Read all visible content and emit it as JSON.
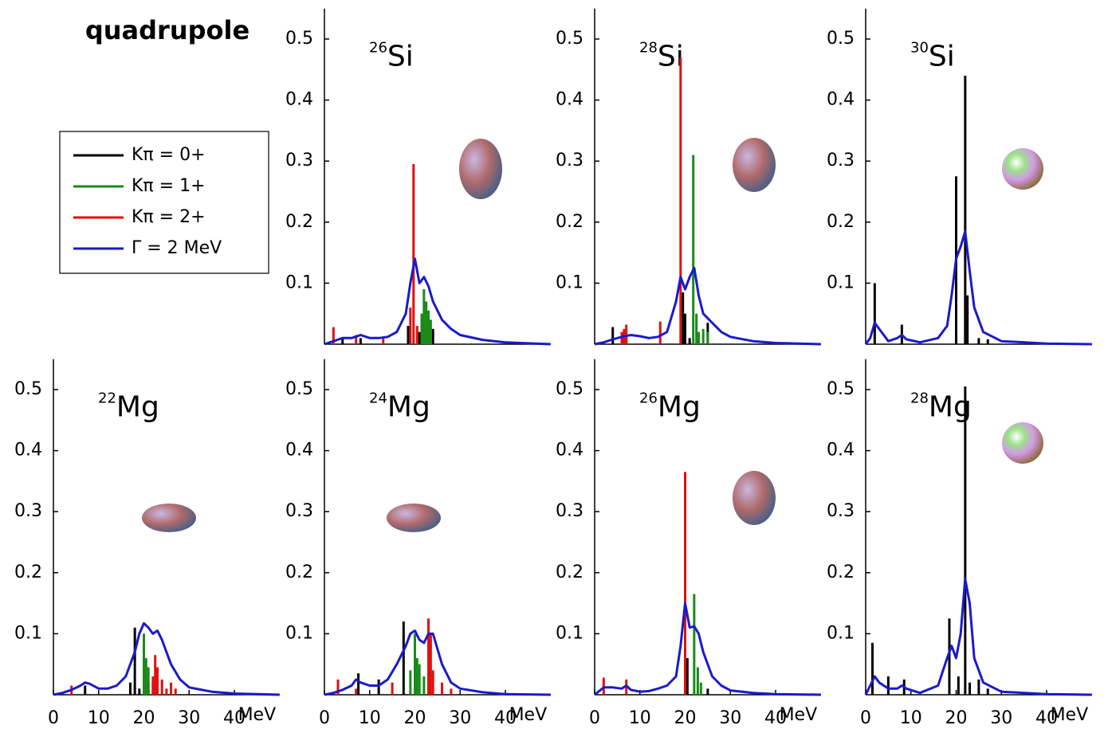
{
  "title": "quadrupole",
  "chart_data": [
    {
      "type": "line",
      "title": {
        "mass": "26",
        "symbol": "Si"
      },
      "xlim": [
        0,
        50
      ],
      "ylim": [
        0,
        0.55
      ],
      "yticks": [
        0.1,
        0.2,
        0.3,
        0.4,
        0.5
      ],
      "series": [
        {
          "name": "Kπ = 0+",
          "color": "#000000",
          "style": "stick",
          "x": [
            4,
            8,
            18.5,
            21,
            22.5,
            24
          ],
          "values": [
            0.01,
            0.01,
            0.03,
            0.02,
            0.025,
            0.025
          ]
        },
        {
          "name": "Kπ = 1+",
          "color": "#1a8a1a",
          "style": "stick",
          "x": [
            20.5,
            21.5,
            22,
            22.5,
            23,
            23.5
          ],
          "values": [
            0.02,
            0.05,
            0.09,
            0.07,
            0.055,
            0.04
          ]
        },
        {
          "name": "Kπ = 2+",
          "color": "#e01010",
          "style": "stick",
          "x": [
            2,
            7,
            13,
            19,
            19.7,
            20.5
          ],
          "values": [
            0.028,
            0.015,
            0.01,
            0.06,
            0.295,
            0.03
          ]
        },
        {
          "name": "Γ = 2 MeV",
          "color": "#1a1acc",
          "style": "line",
          "x": [
            0,
            2,
            4,
            6,
            8,
            10,
            12,
            14,
            16,
            18,
            19,
            20,
            21,
            22,
            23,
            24,
            26,
            28,
            30,
            35,
            40,
            50
          ],
          "values": [
            0,
            0.005,
            0.01,
            0.01,
            0.015,
            0.01,
            0.01,
            0.012,
            0.02,
            0.05,
            0.1,
            0.14,
            0.1,
            0.11,
            0.095,
            0.07,
            0.04,
            0.025,
            0.015,
            0.007,
            0.003,
            0
          ]
        }
      ]
    },
    {
      "type": "line",
      "title": {
        "mass": "28",
        "symbol": "Si"
      },
      "xlim": [
        0,
        50
      ],
      "ylim": [
        0,
        0.55
      ],
      "yticks": [
        0.1,
        0.2,
        0.3,
        0.4,
        0.5
      ],
      "series": [
        {
          "name": "Kπ = 0+",
          "color": "#000000",
          "style": "stick",
          "x": [
            4,
            7,
            19.5,
            20,
            21,
            25
          ],
          "values": [
            0.028,
            0.01,
            0.085,
            0.05,
            0.01,
            0.035
          ]
        },
        {
          "name": "Kπ = 1+",
          "color": "#1a8a1a",
          "style": "stick",
          "x": [
            21.8,
            22.5,
            23,
            24,
            25
          ],
          "values": [
            0.31,
            0.05,
            0.02,
            0.025,
            0.02
          ]
        },
        {
          "name": "Kπ = 2+",
          "color": "#e01010",
          "style": "stick",
          "x": [
            6,
            6.5,
            7,
            14.5,
            19
          ],
          "values": [
            0.02,
            0.025,
            0.032,
            0.037,
            0.47
          ]
        },
        {
          "name": "Γ = 2 MeV",
          "color": "#1a1acc",
          "style": "line",
          "x": [
            0,
            2,
            4,
            6,
            8,
            10,
            12,
            14,
            16,
            18,
            19,
            20,
            21,
            22,
            23,
            24,
            26,
            28,
            30,
            35,
            40,
            50
          ],
          "values": [
            0,
            0.003,
            0.008,
            0.012,
            0.015,
            0.013,
            0.01,
            0.012,
            0.02,
            0.07,
            0.11,
            0.09,
            0.11,
            0.125,
            0.08,
            0.05,
            0.035,
            0.02,
            0.012,
            0.005,
            0.002,
            0
          ]
        }
      ]
    },
    {
      "type": "line",
      "title": {
        "mass": "30",
        "symbol": "Si"
      },
      "xlim": [
        0,
        50
      ],
      "ylim": [
        0,
        0.55
      ],
      "yticks": [
        0.1,
        0.2,
        0.3,
        0.4,
        0.5
      ],
      "series": [
        {
          "name": "Kπ = 0+",
          "color": "#000000",
          "style": "stick",
          "x": [
            2,
            8,
            20,
            22,
            22.5,
            25,
            27
          ],
          "values": [
            0.1,
            0.032,
            0.275,
            0.44,
            0.08,
            0.01,
            0.008
          ]
        },
        {
          "name": "Γ = 2 MeV",
          "color": "#1a1acc",
          "style": "line",
          "x": [
            0,
            1,
            2,
            3,
            5,
            7,
            8,
            9,
            12,
            16,
            18,
            19,
            20,
            21,
            22,
            23,
            24,
            26,
            30,
            40,
            50
          ],
          "values": [
            0,
            0.01,
            0.035,
            0.025,
            0.005,
            0.01,
            0.015,
            0.008,
            0.003,
            0.01,
            0.03,
            0.08,
            0.14,
            0.16,
            0.185,
            0.12,
            0.06,
            0.02,
            0.005,
            0.001,
            0
          ]
        }
      ]
    },
    {
      "type": "line",
      "title": {
        "mass": "22",
        "symbol": "Mg"
      },
      "xlim": [
        0,
        50
      ],
      "ylim": [
        0,
        0.55
      ],
      "yticks": [
        0.1,
        0.2,
        0.3,
        0.4,
        0.5
      ],
      "xticks": [
        0,
        10,
        20,
        30,
        40
      ],
      "xlabel": "MeV",
      "series": [
        {
          "name": "Kπ = 0+",
          "color": "#000000",
          "style": "stick",
          "x": [
            7,
            17,
            18,
            19,
            21
          ],
          "values": [
            0.015,
            0.02,
            0.11,
            0.01,
            0.02
          ]
        },
        {
          "name": "Kπ = 1+",
          "color": "#1a8a1a",
          "style": "stick",
          "x": [
            20,
            20.5,
            21,
            22,
            23
          ],
          "values": [
            0.1,
            0.06,
            0.045,
            0.02,
            0.01
          ]
        },
        {
          "name": "Kπ = 2+",
          "color": "#e01010",
          "style": "stick",
          "x": [
            4,
            22,
            22.5,
            23,
            24,
            25,
            26,
            27
          ],
          "values": [
            0.015,
            0.03,
            0.065,
            0.045,
            0.025,
            0.01,
            0.02,
            0.01
          ]
        },
        {
          "name": "Γ = 2 MeV",
          "color": "#1a1acc",
          "style": "line",
          "x": [
            0,
            2,
            4,
            6,
            7,
            8,
            10,
            12,
            14,
            16,
            18,
            19,
            20,
            21,
            22,
            23,
            24,
            26,
            28,
            30,
            35,
            40,
            50
          ],
          "values": [
            0,
            0.003,
            0.008,
            0.015,
            0.02,
            0.018,
            0.01,
            0.01,
            0.015,
            0.03,
            0.07,
            0.1,
            0.117,
            0.11,
            0.1,
            0.105,
            0.09,
            0.05,
            0.025,
            0.012,
            0.005,
            0.002,
            0
          ]
        }
      ]
    },
    {
      "type": "line",
      "title": {
        "mass": "24",
        "symbol": "Mg"
      },
      "xlim": [
        0,
        50
      ],
      "ylim": [
        0,
        0.55
      ],
      "yticks": [
        0.1,
        0.2,
        0.3,
        0.4,
        0.5
      ],
      "xticks": [
        0,
        10,
        20,
        30,
        40
      ],
      "xlabel": "MeV",
      "series": [
        {
          "name": "Kπ = 0+",
          "color": "#000000",
          "style": "stick",
          "x": [
            3,
            7.5,
            12,
            17.5,
            20
          ],
          "values": [
            0.01,
            0.035,
            0.025,
            0.12,
            0.015
          ]
        },
        {
          "name": "Kπ = 1+",
          "color": "#1a8a1a",
          "style": "stick",
          "x": [
            19,
            20,
            20.5,
            21,
            22,
            23
          ],
          "values": [
            0.04,
            0.1,
            0.06,
            0.05,
            0.03,
            0.02
          ]
        },
        {
          "name": "Kπ = 2+",
          "color": "#e01010",
          "style": "stick",
          "x": [
            3,
            7,
            15,
            23,
            23.5,
            24,
            26,
            28
          ],
          "values": [
            0.025,
            0.01,
            0.02,
            0.125,
            0.1,
            0.04,
            0.02,
            0.01
          ]
        },
        {
          "name": "Γ = 2 MeV",
          "color": "#1a1acc",
          "style": "line",
          "x": [
            0,
            2,
            4,
            6,
            7,
            8,
            10,
            12,
            14,
            16,
            18,
            19,
            20,
            21,
            22,
            23,
            24,
            26,
            28,
            30,
            35,
            40,
            50
          ],
          "values": [
            0,
            0.003,
            0.008,
            0.015,
            0.025,
            0.02,
            0.015,
            0.015,
            0.025,
            0.05,
            0.08,
            0.1,
            0.105,
            0.09,
            0.085,
            0.1,
            0.1,
            0.05,
            0.02,
            0.01,
            0.004,
            0.001,
            0
          ]
        }
      ]
    },
    {
      "type": "line",
      "title": {
        "mass": "26",
        "symbol": "Mg"
      },
      "xlim": [
        0,
        50
      ],
      "ylim": [
        0,
        0.55
      ],
      "yticks": [
        0.1,
        0.2,
        0.3,
        0.4,
        0.5
      ],
      "xticks": [
        0,
        10,
        20,
        30,
        40
      ],
      "xlabel": "MeV",
      "series": [
        {
          "name": "Kπ = 0+",
          "color": "#000000",
          "style": "stick",
          "x": [
            20.5,
            25
          ],
          "values": [
            0.06,
            0.01
          ]
        },
        {
          "name": "Kπ = 1+",
          "color": "#1a8a1a",
          "style": "stick",
          "x": [
            22,
            22.8,
            23.5
          ],
          "values": [
            0.165,
            0.045,
            0.02
          ]
        },
        {
          "name": "Kπ = 2+",
          "color": "#e01010",
          "style": "stick",
          "x": [
            2,
            7,
            20
          ],
          "values": [
            0.028,
            0.025,
            0.365
          ]
        },
        {
          "name": "Γ = 2 MeV",
          "color": "#1a1acc",
          "style": "line",
          "x": [
            0,
            2,
            4,
            6,
            7,
            8,
            10,
            12,
            14,
            16,
            18,
            19,
            20,
            21,
            22,
            23,
            24,
            26,
            28,
            30,
            35,
            40,
            50
          ],
          "values": [
            0,
            0.012,
            0.012,
            0.01,
            0.015,
            0.008,
            0.005,
            0.006,
            0.01,
            0.015,
            0.03,
            0.08,
            0.15,
            0.11,
            0.112,
            0.1,
            0.07,
            0.03,
            0.015,
            0.007,
            0.003,
            0.001,
            0
          ]
        }
      ]
    },
    {
      "type": "line",
      "title": {
        "mass": "28",
        "symbol": "Mg"
      },
      "xlim": [
        0,
        50
      ],
      "ylim": [
        0,
        0.55
      ],
      "yticks": [
        0.1,
        0.2,
        0.3,
        0.4,
        0.5
      ],
      "xticks": [
        0,
        10,
        20,
        30,
        40
      ],
      "xlabel": "MeV",
      "series": [
        {
          "name": "Kπ = 0+",
          "color": "#000000",
          "style": "stick",
          "x": [
            1.5,
            5,
            8.5,
            18.5,
            20.5,
            22,
            23,
            25,
            27
          ],
          "values": [
            0.085,
            0.03,
            0.025,
            0.125,
            0.03,
            0.505,
            0.02,
            0.025,
            0.01
          ]
        },
        {
          "name": "Γ = 2 MeV",
          "color": "#1a1acc",
          "style": "line",
          "x": [
            0,
            1,
            2,
            3,
            5,
            7,
            8,
            9,
            12,
            16,
            18,
            19,
            20,
            21,
            22,
            23,
            24,
            26,
            30,
            40,
            50
          ],
          "values": [
            0,
            0.015,
            0.03,
            0.02,
            0.01,
            0.01,
            0.015,
            0.01,
            0.003,
            0.015,
            0.06,
            0.08,
            0.06,
            0.1,
            0.19,
            0.15,
            0.06,
            0.02,
            0.005,
            0.001,
            0
          ]
        }
      ]
    }
  ]
}
